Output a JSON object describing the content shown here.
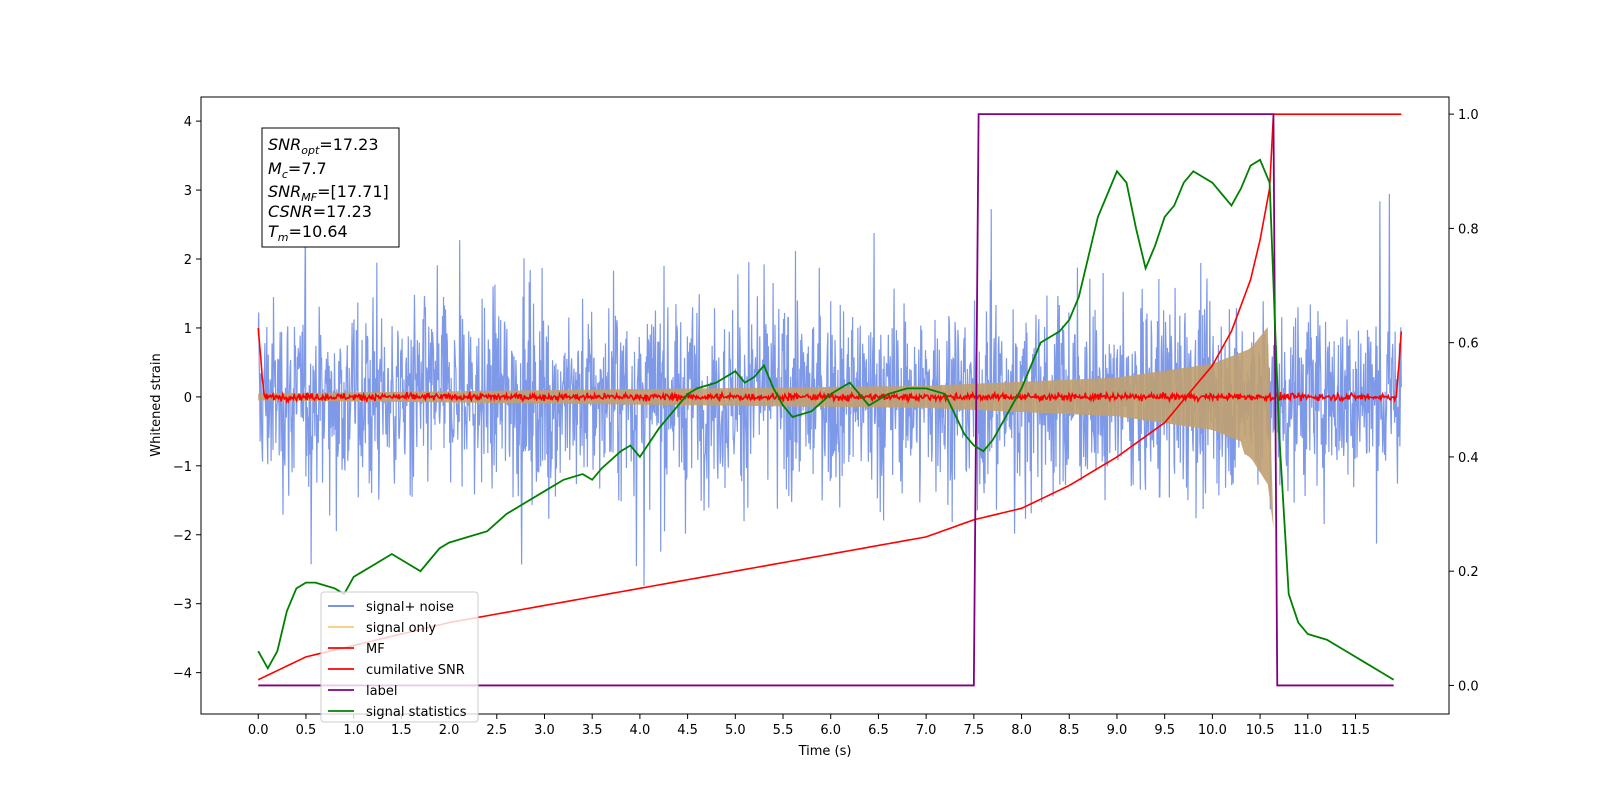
{
  "chart_data": {
    "type": "line",
    "title": "",
    "xlabel": "Time (s)",
    "ylabel": "Whitened strain",
    "y2label": "",
    "xlim": [
      -0.6,
      12.48
    ],
    "ylim": [
      -4.6,
      4.35
    ],
    "y2lim": [
      -0.05,
      1.03
    ],
    "x_ticks": [
      "0.0",
      "0.5",
      "1.0",
      "1.5",
      "2.0",
      "2.5",
      "3.0",
      "3.5",
      "4.0",
      "4.5",
      "5.0",
      "5.5",
      "6.0",
      "6.5",
      "7.0",
      "7.5",
      "8.0",
      "8.5",
      "9.0",
      "9.5",
      "10.0",
      "10.5",
      "11.0",
      "11.5"
    ],
    "y_ticks": [
      "4",
      "3",
      "2",
      "1",
      "0",
      "−1",
      "−2",
      "−3",
      "−4"
    ],
    "y2_ticks": [
      "1.0",
      "0.8",
      "0.6",
      "0.4",
      "0.2",
      "0.0"
    ],
    "legend_position": "lower-left",
    "legend": [
      {
        "label": "signal+ noise",
        "color": "#7893e8"
      },
      {
        "label": "signal only",
        "color": "#f7d08a"
      },
      {
        "label": "MF",
        "color": "#ff0000"
      },
      {
        "label": "cumilative SNR",
        "color": "#ff0000"
      },
      {
        "label": "label",
        "color": "#800080"
      },
      {
        "label": "signal statistics",
        "color": "#008000"
      }
    ],
    "info_box": {
      "snr_opt": {
        "sym": "SNR",
        "sub": "opt",
        "val": "=17.23"
      },
      "mc": {
        "sym": "M",
        "sub": "c",
        "val": "=7.7"
      },
      "snr_mf": {
        "sym": "SNR",
        "sub": "MF",
        "val": "=[17.71]"
      },
      "csnr": {
        "sym": "CSNR",
        "sub": "",
        "val": "=17.23"
      },
      "tm": {
        "sym": "T",
        "sub": "m",
        "val": "=10.64"
      }
    },
    "series": [
      {
        "name": "signal+ noise",
        "axis": "left",
        "color": "#7893e8",
        "x_range": [
          0.0,
          11.98
        ],
        "envelope": "noise with spikes to ±4"
      },
      {
        "name": "signal only",
        "axis": "left",
        "color": "#c0a070",
        "x_range": [
          0.0,
          10.64
        ],
        "envelope_amplitude": [
          [
            0.0,
            0.05
          ],
          [
            7.0,
            0.16
          ],
          [
            9.0,
            0.28
          ],
          [
            10.0,
            0.48
          ],
          [
            10.4,
            0.7
          ],
          [
            10.6,
            1.05
          ],
          [
            10.64,
            -1.9
          ]
        ]
      },
      {
        "name": "MF",
        "axis": "left",
        "color": "#ff0000",
        "x_range": [
          0.0,
          11.98
        ],
        "level": 0.0,
        "edge_values": [
          1.0,
          0.95
        ]
      },
      {
        "name": "cumilative SNR",
        "axis": "right",
        "x": [
          0.0,
          0.5,
          1.0,
          1.5,
          2.0,
          3.0,
          4.0,
          5.0,
          6.0,
          7.0,
          7.5,
          8.0,
          8.5,
          9.0,
          9.5,
          10.0,
          10.2,
          10.4,
          10.5,
          10.6,
          10.64,
          11.98
        ],
        "y": [
          0.01,
          0.05,
          0.07,
          0.09,
          0.11,
          0.14,
          0.17,
          0.2,
          0.23,
          0.26,
          0.29,
          0.31,
          0.35,
          0.4,
          0.46,
          0.56,
          0.62,
          0.71,
          0.78,
          0.87,
          1.0,
          1.0
        ]
      },
      {
        "name": "label",
        "axis": "right",
        "x": [
          0.0,
          7.5,
          7.55,
          10.64,
          10.68,
          11.9
        ],
        "y": [
          0.0,
          0.0,
          1.0,
          1.0,
          0.0,
          0.0
        ]
      },
      {
        "name": "signal statistics",
        "axis": "right",
        "x": [
          0.0,
          0.1,
          0.2,
          0.3,
          0.4,
          0.5,
          0.6,
          0.7,
          0.8,
          0.9,
          1.0,
          1.1,
          1.2,
          1.3,
          1.4,
          1.5,
          1.6,
          1.7,
          1.8,
          1.9,
          2.0,
          2.2,
          2.4,
          2.6,
          2.8,
          3.0,
          3.2,
          3.4,
          3.5,
          3.6,
          3.8,
          3.9,
          4.0,
          4.2,
          4.3,
          4.4,
          4.5,
          4.6,
          4.8,
          5.0,
          5.1,
          5.2,
          5.3,
          5.4,
          5.5,
          5.6,
          5.8,
          6.0,
          6.2,
          6.4,
          6.6,
          6.8,
          7.0,
          7.2,
          7.4,
          7.5,
          7.6,
          7.7,
          7.8,
          8.0,
          8.2,
          8.4,
          8.5,
          8.6,
          8.8,
          9.0,
          9.1,
          9.2,
          9.3,
          9.4,
          9.5,
          9.6,
          9.7,
          9.8,
          10.0,
          10.1,
          10.2,
          10.3,
          10.4,
          10.5,
          10.6,
          10.7,
          10.8,
          10.9,
          11.0,
          11.2,
          11.4,
          11.6,
          11.8,
          11.9
        ],
        "y": [
          0.06,
          0.03,
          0.06,
          0.13,
          0.17,
          0.18,
          0.18,
          0.175,
          0.17,
          0.16,
          0.19,
          0.2,
          0.21,
          0.22,
          0.23,
          0.22,
          0.21,
          0.2,
          0.22,
          0.24,
          0.25,
          0.26,
          0.27,
          0.3,
          0.32,
          0.34,
          0.36,
          0.37,
          0.36,
          0.38,
          0.41,
          0.42,
          0.4,
          0.45,
          0.47,
          0.49,
          0.51,
          0.52,
          0.53,
          0.55,
          0.53,
          0.54,
          0.56,
          0.52,
          0.49,
          0.47,
          0.48,
          0.51,
          0.53,
          0.49,
          0.51,
          0.52,
          0.52,
          0.51,
          0.44,
          0.42,
          0.41,
          0.43,
          0.46,
          0.52,
          0.6,
          0.62,
          0.64,
          0.68,
          0.82,
          0.9,
          0.88,
          0.8,
          0.73,
          0.77,
          0.82,
          0.84,
          0.88,
          0.9,
          0.88,
          0.86,
          0.84,
          0.87,
          0.91,
          0.92,
          0.88,
          0.44,
          0.16,
          0.11,
          0.09,
          0.08,
          0.06,
          0.04,
          0.02,
          0.01
        ]
      }
    ]
  }
}
